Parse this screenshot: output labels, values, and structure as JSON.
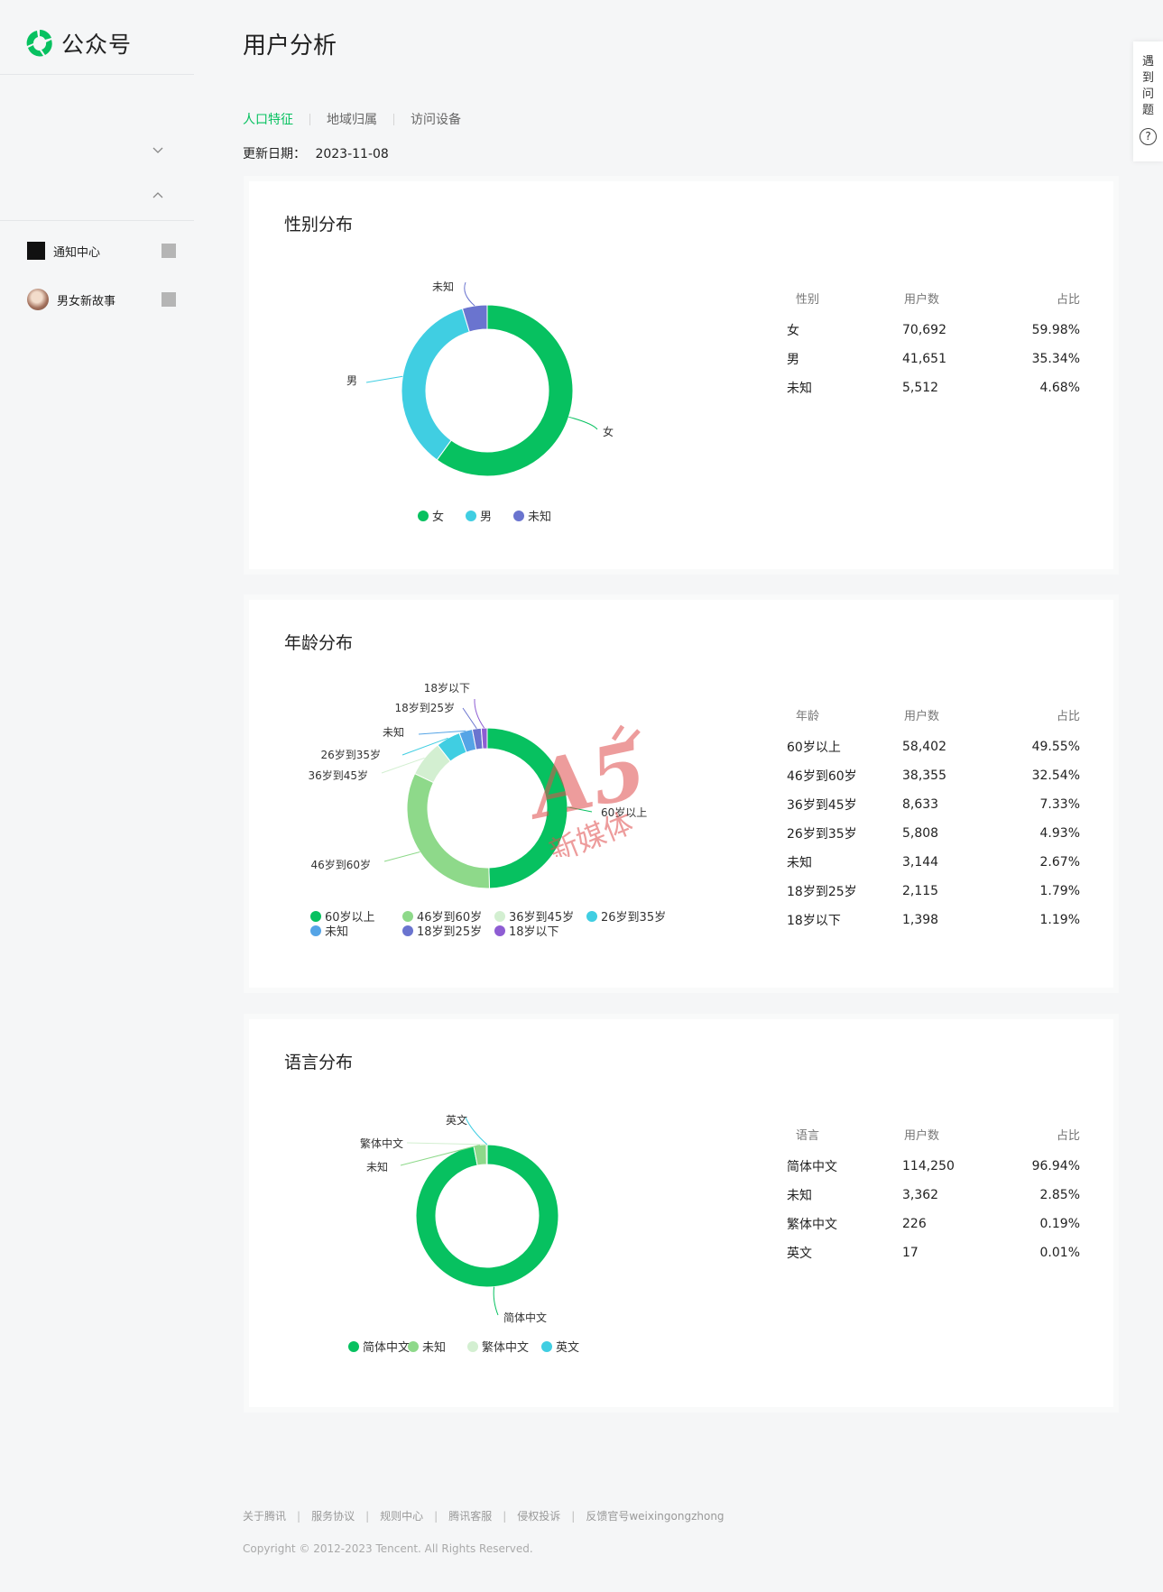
{
  "app": {
    "name": "公众号"
  },
  "sidebar": {
    "items": [
      {
        "label": "通知中心",
        "icon": "square-icon"
      },
      {
        "label": "男女新故事",
        "icon": "avatar"
      }
    ]
  },
  "header": {
    "title": "用户分析"
  },
  "tabs": [
    {
      "label": "人口特征",
      "active": true
    },
    {
      "label": "地域归属",
      "active": false
    },
    {
      "label": "访问设备",
      "active": false
    }
  ],
  "update": {
    "label": "更新日期：",
    "date": "2023-11-08"
  },
  "help": {
    "text": "遇到问题",
    "icon": "question-icon"
  },
  "colors": {
    "accent": "#07c160",
    "g1": "#07c160",
    "g2": "#40cee2",
    "g3": "#6a74cf",
    "a1": "#07c160",
    "a2": "#8ed98a",
    "a3": "#d3efd1",
    "a4": "#40cee2",
    "a5": "#55a4e6",
    "a6": "#6a74cf",
    "a7": "#8e5dd3",
    "l1": "#07c160",
    "l2": "#8ed98a",
    "l3": "#d3efd1",
    "l4": "#40cee2"
  },
  "gender": {
    "title": "性别分布",
    "headers": [
      "性别",
      "用户数",
      "占比"
    ],
    "rows": [
      {
        "label": "女",
        "count": "70,692",
        "pct": "59.98%"
      },
      {
        "label": "男",
        "count": "41,651",
        "pct": "35.34%"
      },
      {
        "label": "未知",
        "count": "5,512",
        "pct": "4.68%"
      }
    ]
  },
  "age": {
    "title": "年龄分布",
    "headers": [
      "年龄",
      "用户数",
      "占比"
    ],
    "rows": [
      {
        "label": "60岁以上",
        "count": "58,402",
        "pct": "49.55%"
      },
      {
        "label": "46岁到60岁",
        "count": "38,355",
        "pct": "32.54%"
      },
      {
        "label": "36岁到45岁",
        "count": "8,633",
        "pct": "7.33%"
      },
      {
        "label": "26岁到35岁",
        "count": "5,808",
        "pct": "4.93%"
      },
      {
        "label": "未知",
        "count": "3,144",
        "pct": "2.67%"
      },
      {
        "label": "18岁到25岁",
        "count": "2,115",
        "pct": "1.79%"
      },
      {
        "label": "18岁以下",
        "count": "1,398",
        "pct": "1.19%"
      }
    ]
  },
  "language": {
    "title": "语言分布",
    "headers": [
      "语言",
      "用户数",
      "占比"
    ],
    "rows": [
      {
        "label": "简体中文",
        "count": "114,250",
        "pct": "96.94%"
      },
      {
        "label": "未知",
        "count": "3,362",
        "pct": "2.85%"
      },
      {
        "label": "繁体中文",
        "count": "226",
        "pct": "0.19%"
      },
      {
        "label": "英文",
        "count": "17",
        "pct": "0.01%"
      }
    ]
  },
  "chart_data": [
    {
      "type": "pie",
      "title": "性别分布",
      "categories": [
        "女",
        "男",
        "未知"
      ],
      "values": [
        59.98,
        35.34,
        4.68
      ],
      "legend": "bottom"
    },
    {
      "type": "pie",
      "title": "年龄分布",
      "categories": [
        "60岁以上",
        "46岁到60岁",
        "36岁到45岁",
        "26岁到35岁",
        "未知",
        "18岁到25岁",
        "18岁以下"
      ],
      "values": [
        49.55,
        32.54,
        7.33,
        4.93,
        2.67,
        1.79,
        1.19
      ],
      "legend": "bottom"
    },
    {
      "type": "pie",
      "title": "语言分布",
      "categories": [
        "简体中文",
        "未知",
        "繁体中文",
        "英文"
      ],
      "values": [
        96.94,
        2.85,
        0.19,
        0.01
      ],
      "legend": "bottom"
    }
  ],
  "footer": {
    "links": [
      "关于腾讯",
      "服务协议",
      "规则中心",
      "腾讯客服",
      "侵权投诉",
      "反馈官号weixingongzhong"
    ],
    "copyright": "Copyright © 2012-2023 Tencent. All Rights Reserved."
  },
  "watermark": {
    "main": "A5",
    "sub": "新媒体"
  }
}
